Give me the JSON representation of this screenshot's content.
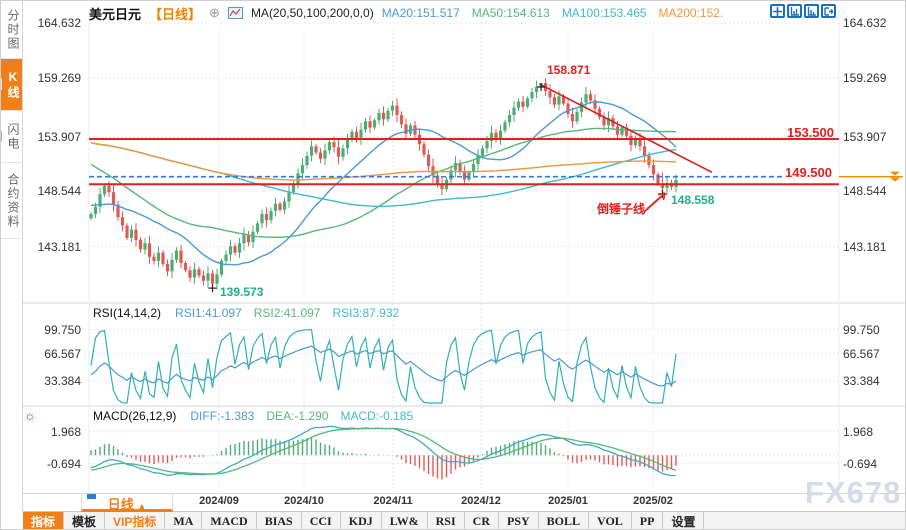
{
  "top_bar": {
    "title": "美元日元",
    "period": "【日线】",
    "plus": "⊕",
    "ma_label": "MA(20,50,100,200,0,0)",
    "ma_values": [
      {
        "label": "MA20:151.517",
        "color": "#4a9ad4"
      },
      {
        "label": "MA50:154.613",
        "color": "#55b87a"
      },
      {
        "label": "MA100:153.465",
        "color": "#3fb9cc"
      },
      {
        "label": "MA200:152.",
        "color": "#f0953f"
      }
    ]
  },
  "sidebar": {
    "items": [
      {
        "label": "分时图",
        "active": false
      },
      {
        "label": "K线图",
        "active": true
      },
      {
        "label": "闪电图",
        "active": false
      },
      {
        "label": "合约资料",
        "active": false
      }
    ]
  },
  "main_chart": {
    "y_ticks": [
      "164.632",
      "159.269",
      "153.907",
      "148.544",
      "143.181"
    ]
  },
  "rsi": {
    "header": "RSI(14,14,2)",
    "values": [
      {
        "label": "RSI1:41.097",
        "color": "#4a9ad4"
      },
      {
        "label": "RSI2:41.097",
        "color": "#55b87a"
      },
      {
        "label": "RSI3:87.932",
        "color": "#3fb9cc"
      }
    ],
    "y_ticks": [
      "99.750",
      "66.567",
      "33.384"
    ]
  },
  "macd": {
    "header": "MACD(26,12,9)",
    "values": [
      {
        "label": "DIFF:-1.383",
        "color": "#4a9ad4"
      },
      {
        "label": "DEA:-1.290",
        "color": "#55b87a"
      },
      {
        "label": "MACD:-0.185",
        "color": "#3fb9cc"
      }
    ],
    "y_ticks": [
      "1.968",
      "-0.694"
    ]
  },
  "x_axis": {
    "labels": [
      "2024/09",
      "2024/10",
      "2024/11",
      "2024/12",
      "2025/01",
      "2025/02"
    ]
  },
  "period_tab": {
    "label": "日线",
    "arrow": "▲"
  },
  "toolbar": {
    "items": [
      {
        "label": "指标",
        "style": "active"
      },
      {
        "label": "模板",
        "style": "cn"
      },
      {
        "label": "VIP指标",
        "style": "vip"
      },
      {
        "label": "MA",
        "style": ""
      },
      {
        "label": "MACD",
        "style": ""
      },
      {
        "label": "BIAS",
        "style": ""
      },
      {
        "label": "CCI",
        "style": ""
      },
      {
        "label": "KDJ",
        "style": ""
      },
      {
        "label": "LW&",
        "style": ""
      },
      {
        "label": "RSI",
        "style": ""
      },
      {
        "label": "CR",
        "style": ""
      },
      {
        "label": "PSY",
        "style": ""
      },
      {
        "label": "BOLL",
        "style": ""
      },
      {
        "label": "VOL",
        "style": ""
      },
      {
        "label": "PP",
        "style": ""
      },
      {
        "label": "设置",
        "style": "cn"
      }
    ]
  },
  "annotations": {
    "high": "158.871",
    "low": "139.573",
    "recent_low": "148.558",
    "pattern": "倒锤子线",
    "resistance": "153.500",
    "alert": "149.500"
  },
  "watermark": "FX678",
  "macd_gear_icon": "☼",
  "chart_data": {
    "type": "candlestick",
    "title": "美元日元 日线 (USD/JPY daily)",
    "y_axis_ticks_main": [
      164.632,
      159.269,
      153.907,
      148.544,
      143.181
    ],
    "y_axis_ticks_rsi": [
      99.75,
      66.567,
      33.384
    ],
    "y_axis_ticks_macd": [
      1.968,
      -0.694
    ],
    "x_tick_labels": [
      "2024/09",
      "2024/10",
      "2024/11",
      "2024/12",
      "2025/01",
      "2025/02"
    ],
    "history_closes": [
      156.0,
      156.3,
      156.8,
      157.1,
      156.6,
      157.0,
      157.4,
      157.2,
      156.7,
      157.3,
      157.8,
      158.2,
      157.9,
      158.4,
      158.9,
      159.3,
      158.8,
      159.4,
      160.0,
      160.5,
      160.9,
      161.3,
      160.8,
      161.5,
      161.9,
      161.2,
      160.6,
      161.0,
      160.2,
      159.4,
      158.6,
      157.8,
      158.3,
      157.5,
      156.6,
      155.8,
      154.9,
      153.8,
      152.7,
      151.6,
      150.4,
      149.2,
      147.8,
      146.3,
      144.8,
      143.2,
      141.7,
      143.5,
      145.0,
      146.4,
      147.3,
      146.6,
      147.5,
      148.2,
      147.6,
      148.4,
      149.0,
      148.3,
      147.6,
      146.9,
      147.4,
      146.8,
      147.2,
      146.5,
      146.9,
      146.2,
      146.6,
      146.0,
      146.4,
      146.2
    ],
    "closes": [
      146.3,
      147.0,
      148.2,
      149.0,
      148.4,
      147.2,
      146.0,
      145.2,
      144.0,
      144.8,
      143.8,
      142.9,
      143.5,
      142.2,
      141.8,
      142.6,
      141.5,
      140.8,
      141.9,
      142.8,
      141.6,
      140.9,
      140.2,
      141.0,
      140.4,
      139.9,
      140.6,
      139.6,
      140.5,
      141.8,
      142.4,
      143.2,
      142.6,
      143.5,
      144.3,
      143.6,
      144.6,
      145.4,
      146.3,
      145.7,
      146.6,
      147.3,
      146.7,
      147.5,
      148.4,
      149.2,
      150.2,
      151.0,
      151.9,
      152.8,
      152.2,
      151.6,
      152.4,
      153.2,
      152.7,
      151.8,
      152.6,
      153.4,
      154.2,
      153.6,
      154.4,
      155.2,
      154.6,
      155.3,
      156.0,
      155.4,
      156.2,
      156.7,
      155.8,
      154.9,
      154.0,
      154.8,
      153.9,
      153.0,
      152.0,
      150.9,
      150.0,
      149.2,
      148.7,
      149.6,
      150.5,
      151.2,
      150.4,
      149.6,
      150.3,
      151.1,
      151.9,
      152.6,
      153.3,
      154.1,
      153.5,
      154.3,
      155.1,
      155.8,
      156.5,
      157.1,
      156.6,
      157.4,
      158.0,
      158.5,
      158.87,
      158.1,
      157.5,
      156.8,
      157.6,
      156.9,
      155.9,
      155.2,
      156.1,
      157.0,
      157.8,
      157.2,
      156.4,
      155.6,
      154.8,
      155.5,
      154.7,
      153.9,
      154.6,
      153.8,
      152.9,
      153.6,
      152.8,
      151.9,
      151.0,
      150.1,
      149.2,
      148.8,
      149.3,
      148.9,
      149.56
    ],
    "marked_points": {
      "high": {
        "index": 100,
        "price": 158.871
      },
      "low": {
        "index": 27,
        "price": 139.573
      },
      "recent_low": {
        "index": 127,
        "price": 148.558
      }
    },
    "hlines": [
      {
        "label": "153.500",
        "price": 153.5,
        "style": "solid-red"
      },
      {
        "label": "149.500",
        "price": 149.5,
        "style": "dashed-blue"
      },
      {
        "label": "",
        "price": 149.15,
        "style": "solid-red"
      }
    ],
    "current_price_marker": {
      "price": 149.5,
      "color": "#f08c00"
    },
    "trendline": {
      "from_index": 100,
      "from_price": 158.7,
      "to_index": 138,
      "to_price": 150.3,
      "color": "#d02020"
    },
    "ma_periods": [
      {
        "period": 20,
        "color": "#4a9ad4"
      },
      {
        "period": 50,
        "color": "#55b87a"
      },
      {
        "period": 100,
        "color": "#3fb9cc"
      },
      {
        "period": 200,
        "color": "#f0953f"
      }
    ],
    "rsi_lines": [
      {
        "period": 14,
        "color": "#4a9ad4"
      },
      {
        "period": 2,
        "color": "#2fb0b4"
      }
    ],
    "macd_params": {
      "fast": 12,
      "slow": 26,
      "signal": 9,
      "diff_color": "#3fa9c9",
      "dea_color": "#55b87a",
      "hist_up_color": "#4cae72",
      "hist_down_color": "#e05a55"
    },
    "candle_up_color": "#4cae72",
    "candle_down_color": "#e05a55"
  }
}
